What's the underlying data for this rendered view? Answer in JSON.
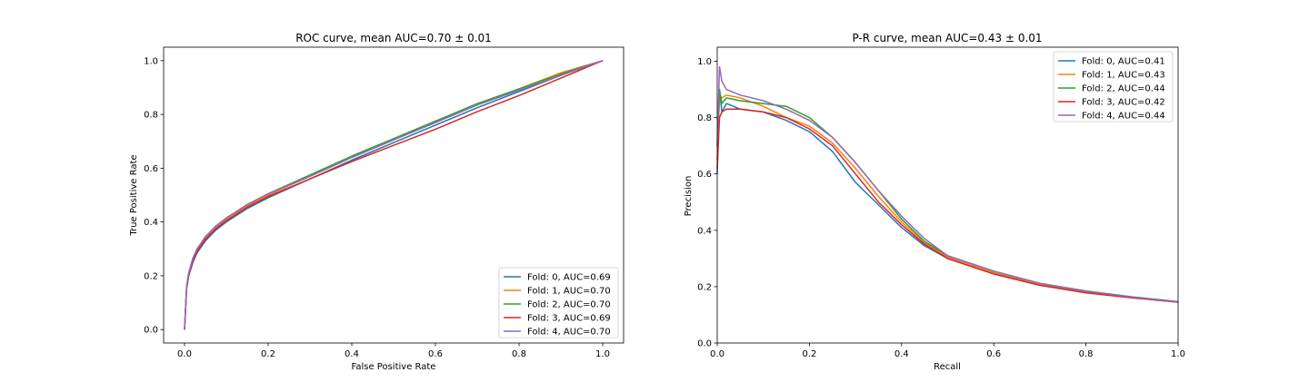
{
  "chart_data": [
    {
      "type": "line",
      "title": "ROC curve, mean AUC=0.70 ± 0.01",
      "xlabel": "False Positive Rate",
      "ylabel": "True Positive Rate",
      "xlim": [
        -0.05,
        1.05
      ],
      "ylim": [
        -0.05,
        1.05
      ],
      "xticks": [
        "0.0",
        "0.2",
        "0.4",
        "0.6",
        "0.8",
        "1.0"
      ],
      "yticks": [
        "0.0",
        "0.2",
        "0.4",
        "0.6",
        "0.8",
        "1.0"
      ],
      "legend_position": "bottom-right",
      "series": [
        {
          "name": "Fold: 0, AUC=0.69",
          "color": "#1f77b4",
          "x": [
            0,
            0.005,
            0.01,
            0.02,
            0.03,
            0.05,
            0.075,
            0.1,
            0.15,
            0.2,
            0.3,
            0.4,
            0.5,
            0.6,
            0.7,
            0.8,
            0.9,
            1.0
          ],
          "y": [
            0,
            0.15,
            0.2,
            0.25,
            0.285,
            0.33,
            0.37,
            0.4,
            0.45,
            0.49,
            0.56,
            0.63,
            0.695,
            0.76,
            0.825,
            0.885,
            0.945,
            1.0
          ]
        },
        {
          "name": "Fold: 1, AUC=0.70",
          "color": "#ff7f0e",
          "x": [
            0,
            0.005,
            0.01,
            0.02,
            0.03,
            0.05,
            0.075,
            0.1,
            0.15,
            0.2,
            0.3,
            0.4,
            0.5,
            0.6,
            0.7,
            0.8,
            0.9,
            1.0
          ],
          "y": [
            0,
            0.155,
            0.205,
            0.26,
            0.295,
            0.34,
            0.38,
            0.41,
            0.46,
            0.5,
            0.57,
            0.64,
            0.705,
            0.77,
            0.835,
            0.895,
            0.955,
            1.0
          ]
        },
        {
          "name": "Fold: 2, AUC=0.70",
          "color": "#2ca02c",
          "x": [
            0,
            0.005,
            0.01,
            0.02,
            0.03,
            0.05,
            0.075,
            0.1,
            0.15,
            0.2,
            0.3,
            0.4,
            0.5,
            0.6,
            0.7,
            0.8,
            0.9,
            1.0
          ],
          "y": [
            0,
            0.16,
            0.21,
            0.265,
            0.3,
            0.345,
            0.385,
            0.415,
            0.465,
            0.505,
            0.575,
            0.645,
            0.71,
            0.775,
            0.84,
            0.895,
            0.95,
            1.0
          ]
        },
        {
          "name": "Fold: 3, AUC=0.69",
          "color": "#d62728",
          "x": [
            0,
            0.005,
            0.01,
            0.02,
            0.03,
            0.05,
            0.075,
            0.1,
            0.15,
            0.2,
            0.3,
            0.4,
            0.5,
            0.6,
            0.7,
            0.8,
            0.9,
            1.0
          ],
          "y": [
            0,
            0.155,
            0.2,
            0.255,
            0.29,
            0.335,
            0.375,
            0.405,
            0.455,
            0.495,
            0.56,
            0.625,
            0.685,
            0.745,
            0.81,
            0.87,
            0.935,
            1.0
          ]
        },
        {
          "name": "Fold: 4, AUC=0.70",
          "color": "#9467bd",
          "x": [
            0,
            0.005,
            0.01,
            0.02,
            0.03,
            0.05,
            0.075,
            0.1,
            0.15,
            0.2,
            0.3,
            0.4,
            0.5,
            0.6,
            0.7,
            0.8,
            0.9,
            1.0
          ],
          "y": [
            0,
            0.16,
            0.21,
            0.265,
            0.3,
            0.345,
            0.385,
            0.415,
            0.465,
            0.505,
            0.57,
            0.64,
            0.705,
            0.77,
            0.835,
            0.89,
            0.945,
            1.0
          ]
        }
      ]
    },
    {
      "type": "line",
      "title": "P-R curve, mean AUC=0.43 ± 0.01",
      "xlabel": "Recall",
      "ylabel": "Precision",
      "xlim": [
        0.0,
        1.0
      ],
      "ylim": [
        0.0,
        1.05
      ],
      "xticks": [
        "0.0",
        "0.2",
        "0.4",
        "0.6",
        "0.8",
        "1.0"
      ],
      "yticks": [
        "0.0",
        "0.2",
        "0.4",
        "0.6",
        "0.8",
        "1.0"
      ],
      "legend_position": "top-right",
      "series": [
        {
          "name": "Fold: 0, AUC=0.41",
          "color": "#1f77b4",
          "x": [
            0,
            0.005,
            0.01,
            0.02,
            0.05,
            0.1,
            0.15,
            0.2,
            0.25,
            0.3,
            0.35,
            0.4,
            0.45,
            0.5,
            0.6,
            0.7,
            0.8,
            0.9,
            1.0
          ],
          "y": [
            0.6,
            0.9,
            0.82,
            0.85,
            0.83,
            0.82,
            0.79,
            0.75,
            0.68,
            0.57,
            0.49,
            0.41,
            0.345,
            0.3,
            0.245,
            0.205,
            0.18,
            0.162,
            0.145
          ]
        },
        {
          "name": "Fold: 1, AUC=0.43",
          "color": "#ff7f0e",
          "x": [
            0,
            0.005,
            0.01,
            0.02,
            0.05,
            0.1,
            0.15,
            0.2,
            0.25,
            0.3,
            0.35,
            0.4,
            0.45,
            0.5,
            0.6,
            0.7,
            0.8,
            0.9,
            1.0
          ],
          "y": [
            0.65,
            0.88,
            0.87,
            0.88,
            0.87,
            0.84,
            0.8,
            0.77,
            0.71,
            0.62,
            0.52,
            0.43,
            0.355,
            0.305,
            0.25,
            0.21,
            0.182,
            0.162,
            0.145
          ]
        },
        {
          "name": "Fold: 2, AUC=0.44",
          "color": "#2ca02c",
          "x": [
            0,
            0.005,
            0.01,
            0.02,
            0.05,
            0.1,
            0.15,
            0.2,
            0.25,
            0.3,
            0.35,
            0.4,
            0.45,
            0.5,
            0.6,
            0.7,
            0.8,
            0.9,
            1.0
          ],
          "y": [
            0.7,
            0.9,
            0.85,
            0.87,
            0.86,
            0.85,
            0.84,
            0.8,
            0.73,
            0.64,
            0.54,
            0.44,
            0.36,
            0.31,
            0.255,
            0.212,
            0.185,
            0.164,
            0.147
          ]
        },
        {
          "name": "Fold: 3, AUC=0.42",
          "color": "#d62728",
          "x": [
            0,
            0.005,
            0.01,
            0.02,
            0.05,
            0.1,
            0.15,
            0.2,
            0.25,
            0.3,
            0.35,
            0.4,
            0.45,
            0.5,
            0.6,
            0.7,
            0.8,
            0.9,
            1.0
          ],
          "y": [
            0.62,
            0.8,
            0.82,
            0.83,
            0.83,
            0.82,
            0.8,
            0.76,
            0.7,
            0.6,
            0.5,
            0.42,
            0.35,
            0.3,
            0.245,
            0.205,
            0.178,
            0.16,
            0.145
          ]
        },
        {
          "name": "Fold: 4, AUC=0.44",
          "color": "#9467bd",
          "x": [
            0,
            0.005,
            0.01,
            0.02,
            0.05,
            0.1,
            0.15,
            0.2,
            0.25,
            0.3,
            0.35,
            0.4,
            0.45,
            0.5,
            0.6,
            0.7,
            0.8,
            0.9,
            1.0
          ],
          "y": [
            0.7,
            0.98,
            0.93,
            0.9,
            0.88,
            0.86,
            0.83,
            0.79,
            0.73,
            0.64,
            0.54,
            0.45,
            0.37,
            0.31,
            0.255,
            0.212,
            0.184,
            0.163,
            0.146
          ]
        }
      ]
    }
  ]
}
